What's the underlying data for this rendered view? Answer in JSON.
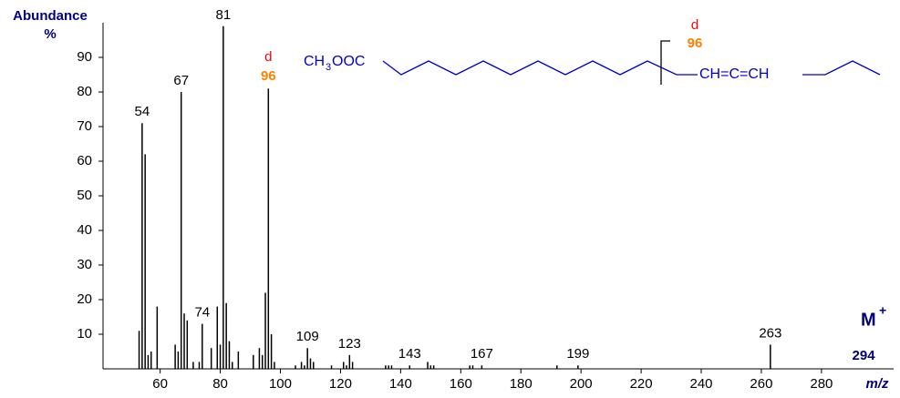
{
  "chart_data": {
    "type": "spectrum",
    "y_label": "Abundance",
    "y_unit": "%",
    "x_label": "m/z",
    "x": [
      53,
      54,
      55,
      56,
      57,
      59,
      65,
      66,
      67,
      68,
      69,
      71,
      73,
      74,
      77,
      79,
      80,
      81,
      82,
      83,
      84,
      86,
      91,
      93,
      94,
      95,
      96,
      97,
      98,
      105,
      107,
      108,
      109,
      110,
      111,
      117,
      121,
      122,
      123,
      124,
      135,
      136,
      137,
      143,
      149,
      150,
      151,
      163,
      164,
      167,
      192,
      199,
      263
    ],
    "values": [
      11,
      71,
      62,
      4,
      5,
      18,
      7,
      5,
      80,
      16,
      14,
      2,
      2,
      13,
      6,
      18,
      7,
      99,
      19,
      8,
      2,
      5,
      4,
      6,
      4,
      22,
      81,
      10,
      2,
      1,
      2,
      1,
      6,
      3,
      2,
      1,
      2,
      1,
      4,
      2,
      1,
      1,
      1,
      1,
      2,
      1,
      1,
      1,
      1,
      1,
      1,
      1,
      7
    ],
    "color": "#000000",
    "labeled_peaks": [
      54,
      67,
      74,
      81,
      109,
      123,
      143,
      167,
      199,
      263
    ],
    "fragment": {
      "marker": "d",
      "mz": 96,
      "marker_color": "#ff0000",
      "mz_color": "#ff8000"
    },
    "molecular_ion": {
      "label": "M",
      "charge": "+",
      "mz": 294
    },
    "xlim": [
      41,
      304
    ],
    "ylim": [
      0,
      100
    ],
    "xticks": [
      60,
      80,
      100,
      120,
      140,
      160,
      180,
      200,
      220,
      240,
      260,
      280
    ],
    "yticks": [
      10,
      20,
      30,
      40,
      50,
      60,
      70,
      80,
      90
    ],
    "structure": {
      "ester_left": "CH",
      "ester_sub": "3",
      "ester_right": "OOC",
      "allene": "CH=C=CH"
    }
  }
}
